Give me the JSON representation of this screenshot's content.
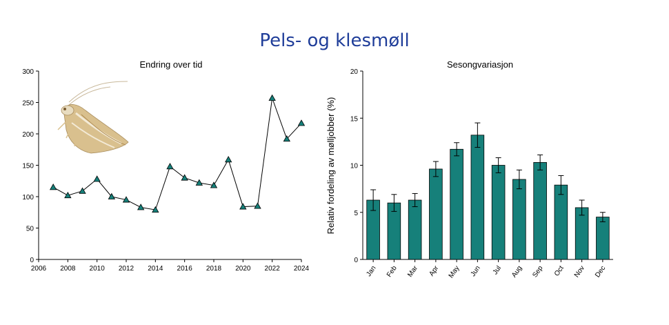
{
  "title": "Pels- og klesmøll",
  "colors": {
    "title": "#1f3d99",
    "accent": "#16807a",
    "line": "#000000"
  },
  "chart_data": [
    {
      "type": "line",
      "title": "Endring over tid",
      "xlabel": "",
      "ylabel": "",
      "xlim": [
        2006,
        2024
      ],
      "ylim": [
        0,
        300
      ],
      "xticks": [
        2006,
        2008,
        2010,
        2012,
        2014,
        2016,
        2018,
        2020,
        2022,
        2024
      ],
      "yticks": [
        0,
        50,
        100,
        150,
        200,
        250,
        300
      ],
      "marker": "triangle",
      "grid": false,
      "series": [
        {
          "x": [
            2007,
            2008,
            2009,
            2010,
            2011,
            2012,
            2013,
            2014,
            2015,
            2016,
            2017,
            2018,
            2019,
            2020,
            2021,
            2022,
            2023,
            2024
          ],
          "values": [
            115,
            102,
            109,
            128,
            100,
            95,
            83,
            79,
            148,
            130,
            122,
            118,
            159,
            84,
            85,
            257,
            192,
            217
          ]
        }
      ],
      "illustration": "moth-icon"
    },
    {
      "type": "bar",
      "title": "Sesongvariasjon",
      "xlabel": "",
      "ylabel": "Relativ fordeling av mølljobber (%)",
      "ylim": [
        0,
        20
      ],
      "yticks": [
        0,
        5,
        10,
        15,
        20
      ],
      "grid": false,
      "categories": [
        "Jan",
        "Feb",
        "Mar",
        "Apr",
        "May",
        "Jun",
        "Jul",
        "Aug",
        "Sep",
        "Oct",
        "Nov",
        "Dec"
      ],
      "series": [
        {
          "values": [
            6.3,
            6.0,
            6.3,
            9.6,
            11.7,
            13.2,
            10.0,
            8.5,
            10.3,
            7.9,
            5.5,
            4.5
          ],
          "error": [
            1.1,
            0.9,
            0.7,
            0.8,
            0.7,
            1.3,
            0.8,
            1.0,
            0.8,
            1.0,
            0.8,
            0.5
          ]
        }
      ]
    }
  ]
}
